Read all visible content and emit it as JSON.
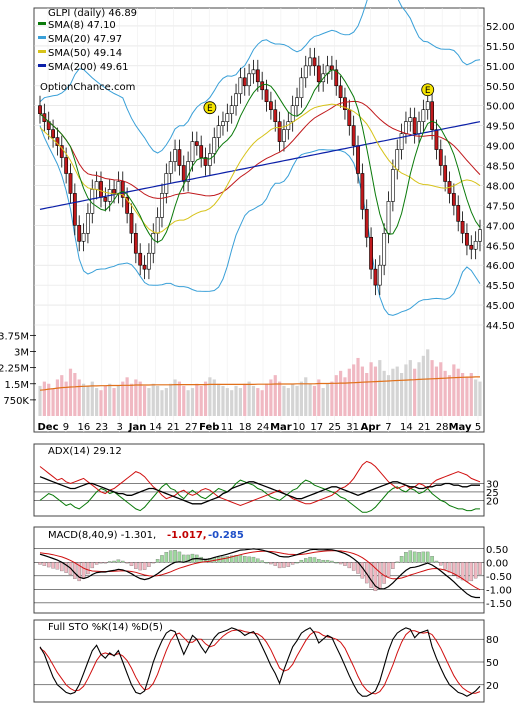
{
  "chart_data": {
    "type": "line",
    "ticker_label": "GLPI (daily) 46.89",
    "watermark": "OptionChance.com",
    "legend": [
      {
        "label": "SMA(8) 47.10",
        "color": "#0a7a0a"
      },
      {
        "label": "SMA(20) 47.97",
        "color": "#3aa0d8"
      },
      {
        "label": "SMA(50) 49.14",
        "color": "#d7c31a"
      },
      {
        "label": "SMA(200) 49.61",
        "color": "#0b1fa8"
      }
    ],
    "x_tick_labels": [
      "Dec",
      "9",
      "16",
      "23",
      "3",
      "Jan",
      "14",
      "21",
      "27",
      "Feb",
      "11",
      "18",
      "24",
      "Mar",
      "10",
      "17",
      "25",
      "31",
      "Apr",
      "7",
      "14",
      "21",
      "28",
      "May",
      "5"
    ],
    "month_labels": [
      "Dec",
      "Jan",
      "Feb",
      "Mar",
      "Apr",
      "May"
    ],
    "price_axis": {
      "ticks": [
        "44.50",
        "45.00",
        "45.50",
        "46.00",
        "46.50",
        "47.00",
        "47.50",
        "48.00",
        "48.50",
        "49.00",
        "49.50",
        "50.00",
        "50.50",
        "51.00",
        "51.50",
        "52.00"
      ],
      "ylim": [
        44.5,
        52.3
      ]
    },
    "volume_axis": {
      "ticks": [
        "3.75M",
        "3M",
        "2.25M",
        "1.5M",
        "750K"
      ],
      "ylim": [
        0,
        4000000
      ]
    },
    "earnings_markers": [
      {
        "label": "E",
        "x_index": 39,
        "price": 49.75
      },
      {
        "label": "E",
        "x_index": 89,
        "price": 50.2
      }
    ],
    "close": [
      49.8,
      49.6,
      49.4,
      49.2,
      49.0,
      48.7,
      48.3,
      47.8,
      47.0,
      46.6,
      46.8,
      47.3,
      47.9,
      48.1,
      47.7,
      47.6,
      47.9,
      47.8,
      48.1,
      47.7,
      47.3,
      46.8,
      46.3,
      46.0,
      45.9,
      46.3,
      46.8,
      47.2,
      47.8,
      48.3,
      48.6,
      48.9,
      48.5,
      48.1,
      48.6,
      49.1,
      49.0,
      48.7,
      48.5,
      48.8,
      49.2,
      49.5,
      49.6,
      49.8,
      50.0,
      50.3,
      50.7,
      50.5,
      50.8,
      50.9,
      50.6,
      50.4,
      50.1,
      49.9,
      49.6,
      49.1,
      49.4,
      49.6,
      50.0,
      50.2,
      50.7,
      51.0,
      51.2,
      51.0,
      50.6,
      50.8,
      51.0,
      50.9,
      50.5,
      50.2,
      49.9,
      49.5,
      49.0,
      48.3,
      47.4,
      46.7,
      45.9,
      45.5,
      46.0,
      46.8,
      47.6,
      48.4,
      48.9,
      49.3,
      49.6,
      49.7,
      49.3,
      49.6,
      49.9,
      50.1,
      49.4,
      48.9,
      48.5,
      48.1,
      47.8,
      47.5,
      47.1,
      46.8,
      46.5,
      46.4,
      46.6,
      46.89
    ],
    "volume": [
      1.4,
      1.6,
      1.5,
      1.3,
      1.7,
      1.9,
      1.6,
      2.2,
      2.0,
      1.7,
      1.5,
      1.4,
      1.6,
      1.3,
      1.2,
      1.4,
      1.5,
      1.3,
      1.4,
      1.6,
      1.8,
      1.5,
      1.7,
      1.6,
      1.4,
      1.3,
      1.5,
      1.4,
      1.2,
      1.3,
      1.5,
      1.7,
      1.6,
      1.4,
      1.2,
      1.3,
      1.5,
      1.4,
      1.6,
      1.8,
      1.7,
      1.5,
      1.4,
      1.3,
      1.2,
      1.4,
      1.3,
      1.5,
      1.6,
      1.4,
      1.3,
      1.2,
      1.5,
      1.7,
      1.9,
      1.6,
      1.4,
      1.3,
      1.5,
      1.4,
      1.6,
      1.8,
      1.5,
      1.4,
      1.7,
      1.3,
      1.5,
      1.6,
      1.9,
      2.1,
      1.8,
      2.2,
      2.4,
      2.7,
      2.3,
      2.0,
      2.5,
      2.3,
      2.6,
      2.1,
      1.9,
      2.2,
      2.3,
      2.0,
      2.4,
      2.6,
      2.2,
      2.5,
      2.8,
      3.1,
      2.6,
      2.3,
      2.5,
      2.1,
      1.9,
      2.4,
      2.2,
      2.0,
      1.8,
      2.0,
      1.7,
      1.6
    ],
    "volume_sma": [
      1.2,
      1.22,
      1.25,
      1.27,
      1.3,
      1.32,
      1.33,
      1.35,
      1.36,
      1.37,
      1.38,
      1.39,
      1.4,
      1.4,
      1.41,
      1.41,
      1.42,
      1.42,
      1.42,
      1.43,
      1.43,
      1.43,
      1.44,
      1.44,
      1.44,
      1.44,
      1.45,
      1.45,
      1.45,
      1.45,
      1.45,
      1.46,
      1.46,
      1.46,
      1.46,
      1.46,
      1.46,
      1.46,
      1.46,
      1.47,
      1.47,
      1.47,
      1.47,
      1.47,
      1.47,
      1.47,
      1.47,
      1.47,
      1.47,
      1.47,
      1.48,
      1.48,
      1.48,
      1.48,
      1.49,
      1.49,
      1.49,
      1.49,
      1.49,
      1.5,
      1.5,
      1.5,
      1.5,
      1.5,
      1.51,
      1.51,
      1.51,
      1.52,
      1.52,
      1.53,
      1.53,
      1.54,
      1.55,
      1.56,
      1.57,
      1.58,
      1.59,
      1.6,
      1.61,
      1.62,
      1.63,
      1.64,
      1.65,
      1.66,
      1.67,
      1.68,
      1.69,
      1.7,
      1.71,
      1.72,
      1.73,
      1.74,
      1.75,
      1.76,
      1.77,
      1.78,
      1.79,
      1.8,
      1.81,
      1.81,
      1.82,
      1.82
    ],
    "adx": {
      "label": "ADX(14) 29.12",
      "ticks": [
        "30",
        "25",
        "20"
      ],
      "ylim": [
        12,
        45
      ],
      "adx_values": [
        34,
        33,
        32,
        31,
        30,
        29,
        28,
        27,
        27,
        28,
        29,
        30,
        30,
        29,
        28,
        27,
        26,
        25,
        24,
        24,
        23,
        23,
        24,
        25,
        26,
        27,
        27,
        26,
        25,
        24,
        23,
        22,
        21,
        20,
        19,
        18,
        18,
        18,
        19,
        20,
        21,
        22,
        24,
        25,
        27,
        28,
        29,
        30,
        31,
        31,
        30,
        29,
        28,
        27,
        26,
        25,
        24,
        23,
        22,
        21,
        21,
        22,
        23,
        24,
        25,
        26,
        27,
        28,
        28,
        27,
        26,
        25,
        24,
        23,
        24,
        25,
        26,
        27,
        28,
        29,
        30,
        31,
        31,
        30,
        29,
        28,
        28,
        27,
        27,
        28,
        28,
        29,
        29,
        30,
        30,
        29,
        29,
        28,
        28,
        29,
        29,
        29
      ],
      "plus_di": [
        20,
        22,
        24,
        23,
        21,
        19,
        17,
        18,
        16,
        15,
        17,
        19,
        22,
        25,
        27,
        26,
        24,
        25,
        23,
        21,
        19,
        17,
        15,
        14,
        16,
        19,
        22,
        25,
        28,
        30,
        27,
        26,
        23,
        21,
        24,
        26,
        24,
        22,
        21,
        23,
        25,
        27,
        26,
        25,
        27,
        30,
        32,
        31,
        30,
        29,
        27,
        26,
        24,
        22,
        21,
        20,
        22,
        24,
        26,
        27,
        30,
        32,
        31,
        29,
        28,
        27,
        26,
        25,
        24,
        22,
        21,
        19,
        17,
        15,
        13,
        13,
        14,
        16,
        19,
        22,
        25,
        27,
        28,
        26,
        25,
        27,
        26,
        24,
        25,
        27,
        24,
        22,
        20,
        19,
        17,
        16,
        15,
        15,
        14,
        14,
        15,
        15
      ],
      "minus_di": [
        40,
        38,
        36,
        34,
        32,
        33,
        31,
        30,
        31,
        32,
        33,
        31,
        29,
        27,
        25,
        24,
        26,
        27,
        29,
        31,
        33,
        35,
        37,
        36,
        34,
        31,
        28,
        26,
        23,
        21,
        22,
        23,
        25,
        26,
        24,
        23,
        24,
        26,
        27,
        26,
        24,
        22,
        21,
        20,
        19,
        18,
        17,
        18,
        19,
        20,
        21,
        22,
        23,
        24,
        25,
        26,
        24,
        23,
        21,
        20,
        19,
        18,
        18,
        19,
        20,
        21,
        22,
        23,
        25,
        27,
        28,
        30,
        33,
        37,
        41,
        43,
        42,
        40,
        37,
        34,
        31,
        29,
        27,
        28,
        29,
        27,
        28,
        30,
        29,
        27,
        30,
        32,
        33,
        34,
        35,
        36,
        37,
        36,
        35,
        33,
        32,
        31
      ]
    },
    "macd": {
      "label": "MACD(8,40,9) -1.301,",
      "value2": "-1.017,",
      "value3": "-0.285",
      "ticks": [
        "0.50",
        "0.00",
        "-0.50",
        "-1.00",
        "-1.50"
      ],
      "ylim": [
        -1.8,
        0.75
      ],
      "macd_values": [
        0.3,
        0.25,
        0.2,
        0.14,
        0.08,
        0.0,
        -0.1,
        -0.22,
        -0.4,
        -0.55,
        -0.6,
        -0.55,
        -0.45,
        -0.38,
        -0.36,
        -0.36,
        -0.32,
        -0.3,
        -0.26,
        -0.28,
        -0.34,
        -0.42,
        -0.52,
        -0.6,
        -0.64,
        -0.6,
        -0.52,
        -0.42,
        -0.3,
        -0.18,
        -0.08,
        0.0,
        0.02,
        0.0,
        0.05,
        0.12,
        0.14,
        0.12,
        0.1,
        0.13,
        0.18,
        0.22,
        0.26,
        0.3,
        0.35,
        0.4,
        0.45,
        0.46,
        0.48,
        0.5,
        0.48,
        0.45,
        0.41,
        0.36,
        0.3,
        0.22,
        0.2,
        0.2,
        0.24,
        0.28,
        0.34,
        0.4,
        0.46,
        0.48,
        0.46,
        0.46,
        0.47,
        0.46,
        0.43,
        0.38,
        0.32,
        0.24,
        0.13,
        0.0,
        -0.2,
        -0.42,
        -0.66,
        -0.88,
        -0.98,
        -0.98,
        -0.9,
        -0.76,
        -0.6,
        -0.44,
        -0.3,
        -0.2,
        -0.18,
        -0.14,
        -0.08,
        -0.03,
        -0.1,
        -0.2,
        -0.32,
        -0.45,
        -0.58,
        -0.72,
        -0.88,
        -1.02,
        -1.16,
        -1.26,
        -1.3,
        -1.301
      ],
      "signal_values": [
        0.35,
        0.33,
        0.31,
        0.28,
        0.24,
        0.2,
        0.14,
        0.07,
        -0.02,
        -0.12,
        -0.22,
        -0.28,
        -0.32,
        -0.33,
        -0.34,
        -0.34,
        -0.34,
        -0.33,
        -0.32,
        -0.31,
        -0.32,
        -0.34,
        -0.37,
        -0.42,
        -0.47,
        -0.5,
        -0.51,
        -0.49,
        -0.46,
        -0.41,
        -0.35,
        -0.28,
        -0.22,
        -0.17,
        -0.12,
        -0.07,
        -0.03,
        0.0,
        0.02,
        0.04,
        0.07,
        0.1,
        0.13,
        0.16,
        0.2,
        0.24,
        0.28,
        0.32,
        0.35,
        0.38,
        0.4,
        0.41,
        0.41,
        0.4,
        0.38,
        0.35,
        0.32,
        0.3,
        0.29,
        0.28,
        0.29,
        0.31,
        0.34,
        0.37,
        0.39,
        0.41,
        0.42,
        0.43,
        0.43,
        0.42,
        0.4,
        0.37,
        0.32,
        0.26,
        0.17,
        0.06,
        -0.07,
        -0.22,
        -0.37,
        -0.49,
        -0.57,
        -0.61,
        -0.61,
        -0.58,
        -0.53,
        -0.47,
        -0.42,
        -0.37,
        -0.32,
        -0.27,
        -0.24,
        -0.23,
        -0.25,
        -0.29,
        -0.35,
        -0.42,
        -0.51,
        -0.61,
        -0.72,
        -0.83,
        -0.93,
        -1.017
      ]
    },
    "stochastic": {
      "label": "Full STO %K(14) %D(5)",
      "ticks": [
        "80",
        "50",
        "20"
      ],
      "ylim": [
        0,
        100
      ],
      "k_values": [
        70,
        60,
        45,
        30,
        20,
        15,
        10,
        8,
        10,
        20,
        35,
        50,
        65,
        72,
        60,
        55,
        62,
        58,
        65,
        50,
        35,
        20,
        10,
        8,
        12,
        30,
        50,
        65,
        78,
        88,
        92,
        90,
        75,
        60,
        72,
        85,
        80,
        70,
        62,
        72,
        82,
        88,
        90,
        92,
        95,
        93,
        90,
        85,
        88,
        90,
        82,
        70,
        58,
        45,
        35,
        22,
        40,
        55,
        70,
        78,
        88,
        92,
        95,
        88,
        75,
        80,
        85,
        82,
        70,
        58,
        45,
        32,
        20,
        10,
        5,
        5,
        8,
        12,
        25,
        45,
        65,
        80,
        88,
        92,
        95,
        93,
        82,
        88,
        90,
        92,
        70,
        55,
        42,
        30,
        20,
        15,
        10,
        8,
        5,
        8,
        12,
        18
      ],
      "d_values": [
        68,
        64,
        56,
        46,
        36,
        28,
        20,
        15,
        12,
        13,
        18,
        28,
        40,
        52,
        60,
        62,
        60,
        59,
        61,
        58,
        52,
        42,
        30,
        20,
        13,
        15,
        22,
        34,
        50,
        65,
        78,
        86,
        88,
        82,
        76,
        76,
        80,
        80,
        74,
        70,
        72,
        78,
        84,
        88,
        91,
        92,
        92,
        90,
        89,
        88,
        87,
        83,
        76,
        66,
        54,
        42,
        38,
        40,
        47,
        58,
        68,
        78,
        86,
        90,
        89,
        85,
        83,
        82,
        80,
        76,
        68,
        56,
        44,
        31,
        20,
        13,
        9,
        8,
        11,
        19,
        32,
        46,
        62,
        76,
        86,
        91,
        91,
        89,
        88,
        89,
        86,
        78,
        68,
        56,
        44,
        32,
        23,
        16,
        12,
        9,
        9,
        11
      ]
    }
  }
}
